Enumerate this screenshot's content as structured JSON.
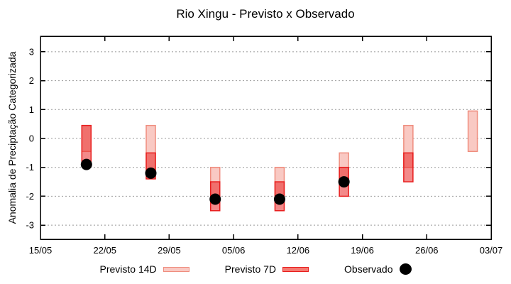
{
  "chart_data": {
    "type": "bar",
    "subtype": "forecast-range-candlesticks-with-observed-points",
    "title": "Rio Xingu - Previsto x Observado",
    "xlabel": "",
    "ylabel": "Anomalia de Preciptação Categorizada",
    "ylim": [
      -3.5,
      3.5
    ],
    "yticks": [
      -3,
      -2,
      -1,
      0,
      1,
      2,
      3
    ],
    "x_ticks": [
      "15/05",
      "22/05",
      "29/05",
      "05/06",
      "12/06",
      "19/06",
      "26/06",
      "03/07"
    ],
    "x_range_days": 49,
    "grid": "horizontal dotted gray lines at integer y values, no vertical gridlines",
    "legend_position": "centered below plot",
    "colors": {
      "grid": "#999999",
      "axis": "#000000",
      "observed": "#000000",
      "forecast14d_fill": "#f9c9c3",
      "forecast14d_border": "#ef8d7e",
      "forecast7d_fill_overlay": "rgba(232,30,30,0.52)",
      "forecast7d_fill_solid": "#f57a72",
      "forecast7d_border": "#e81e1e"
    },
    "series": [
      {
        "name": "Previsto 14D",
        "kind": "range",
        "points": [
          {
            "date": "20/05",
            "high": 0.45,
            "low": -0.45
          },
          {
            "date": "27/05",
            "high": 0.45,
            "low": -1.05
          },
          {
            "date": "03/06",
            "high": -1.0,
            "low": -2.2
          },
          {
            "date": "10/06",
            "high": -1.0,
            "low": -2.2
          },
          {
            "date": "17/06",
            "high": -0.5,
            "low": -1.6
          },
          {
            "date": "24/06",
            "high": 0.45,
            "low": -1.0
          },
          {
            "date": "01/07",
            "high": 0.95,
            "low": -0.45
          }
        ]
      },
      {
        "name": "Previsto 7D",
        "kind": "range",
        "points": [
          {
            "date": "20/05",
            "high": 0.45,
            "low": -0.9
          },
          {
            "date": "27/05",
            "high": -0.5,
            "low": -1.4
          },
          {
            "date": "03/06",
            "high": -1.5,
            "low": -2.5
          },
          {
            "date": "10/06",
            "high": -1.5,
            "low": -2.5
          },
          {
            "date": "17/06",
            "high": -1.0,
            "low": -2.0
          },
          {
            "date": "24/06",
            "high": -0.5,
            "low": -1.5
          }
        ]
      },
      {
        "name": "Observado",
        "kind": "scatter",
        "points": [
          {
            "date": "20/05",
            "value": -0.9
          },
          {
            "date": "27/05",
            "value": -1.2
          },
          {
            "date": "03/06",
            "value": -2.1
          },
          {
            "date": "10/06",
            "value": -2.1
          },
          {
            "date": "17/06",
            "value": -1.5
          }
        ]
      }
    ]
  }
}
